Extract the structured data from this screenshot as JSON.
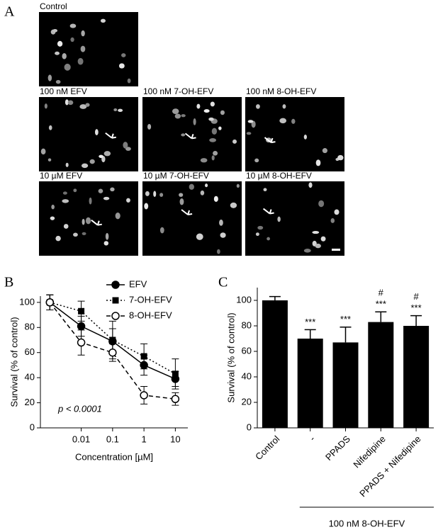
{
  "panel_a": {
    "label": "A",
    "images": [
      "Control",
      "100 nM EFV",
      "100 nM 7-OH-EFV",
      "100 nM 8-OH-EFV",
      "10 µM EFV",
      "10 µM 7-OH-EFV",
      "10 µM 8-OH-EFV"
    ]
  },
  "chart_data": [
    {
      "type": "line",
      "panel": "B",
      "x_label": "Concentration [µM]",
      "y_label": "Survival (% of control)",
      "annotation": "p < 0.0001",
      "log_x": true,
      "x": [
        0.001,
        0.01,
        0.1,
        1,
        10
      ],
      "xlim": [
        0.0005,
        25
      ],
      "xticks": [
        0.01,
        0.1,
        1,
        10
      ],
      "ylim": [
        0,
        105
      ],
      "yticks": [
        0,
        20,
        40,
        60,
        80,
        100
      ],
      "legend": "top-right",
      "series": [
        {
          "name": "EFV",
          "color": "#000000",
          "marker": "circle",
          "dash": "solid",
          "values": [
            100,
            81,
            69,
            50,
            39
          ],
          "errors": [
            6,
            8,
            10,
            8,
            6
          ]
        },
        {
          "name": "7-OH-EFV",
          "color": "#000000",
          "marker": "square",
          "dash": "dotted",
          "values": [
            100,
            93,
            70,
            57,
            43
          ],
          "errors": [
            6,
            8,
            15,
            10,
            12
          ]
        },
        {
          "name": "8-OH-EFV",
          "color": "#000000",
          "marker": "open-circle",
          "dash": "dashed",
          "values": [
            100,
            68,
            60,
            26,
            23
          ],
          "errors": [
            6,
            10,
            7,
            7,
            5
          ]
        }
      ]
    },
    {
      "type": "bar",
      "panel": "C",
      "y_label": "Survival (% of control)",
      "categories": [
        "Control",
        "-",
        "PPADS",
        "Nifedipine",
        "PPADS + Nifedipine"
      ],
      "values": [
        100,
        70,
        67,
        83,
        80
      ],
      "errors": [
        3,
        7,
        12,
        8,
        8
      ],
      "significance": [
        null,
        "***",
        "***",
        "***",
        "***"
      ],
      "hash": [
        null,
        null,
        null,
        "#",
        "#"
      ],
      "color": "#000000",
      "ylim": [
        0,
        110
      ],
      "yticks": [
        0,
        20,
        40,
        60,
        80,
        100
      ],
      "group_label": "100 nM 8-OH-EFV"
    }
  ]
}
